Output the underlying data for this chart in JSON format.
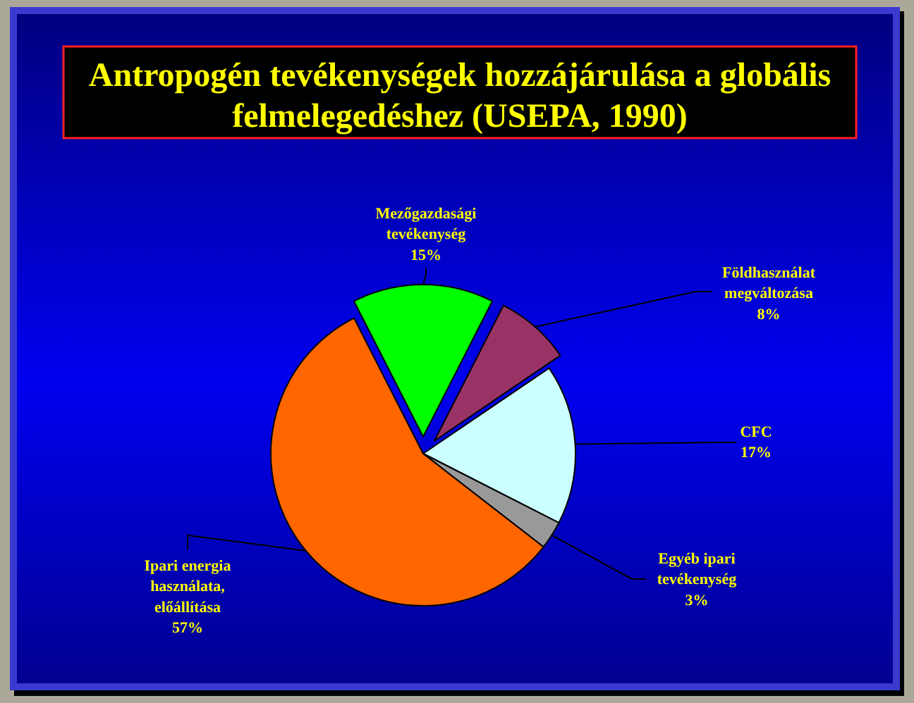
{
  "chart_data": {
    "type": "pie",
    "title": "Antropogén tevékenységek hozzájárulása a globális felmelegedéshez (USEPA, 1990)",
    "categories": [
      "Mezőgazdasági tevékenység",
      "Földhasználat megváltozása",
      "CFC",
      "Egyéb ipari tevékenység",
      "Ipari energia használata, előállítása"
    ],
    "values": [
      15,
      8,
      17,
      3,
      57
    ],
    "value_labels": [
      "15%",
      "8%",
      "17%",
      "3%",
      "57%"
    ],
    "colors": [
      "#00ff00",
      "#993366",
      "#ccffff",
      "#999999",
      "#ff6600"
    ]
  }
}
